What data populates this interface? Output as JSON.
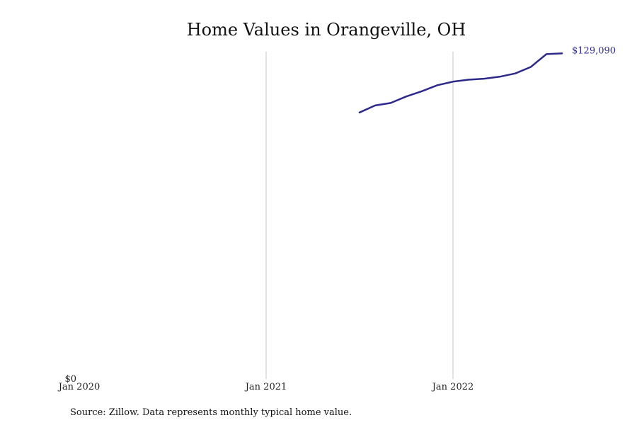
{
  "chart_data": {
    "type": "line",
    "title": "Home Values in Orangeville, OH",
    "xlabel": "",
    "ylabel": "",
    "x_tick_labels": [
      "Jan 2020",
      "Jan 2021",
      "Jan 2022"
    ],
    "y_tick_labels": [
      "$0"
    ],
    "ylim": [
      0,
      129090
    ],
    "xlim": [
      "2020-01",
      "2022-10"
    ],
    "grid": "vertical lines at Jan 2021 and Jan 2022",
    "series": [
      {
        "color": "#2e2a8c",
        "points": [
          {
            "x": "2021-07",
            "y": 105500
          },
          {
            "x": "2021-08",
            "y": 108300
          },
          {
            "x": "2021-09",
            "y": 109300
          },
          {
            "x": "2021-10",
            "y": 111900
          },
          {
            "x": "2021-11",
            "y": 114000
          },
          {
            "x": "2021-12",
            "y": 116400
          },
          {
            "x": "2022-01",
            "y": 117800
          },
          {
            "x": "2022-02",
            "y": 118600
          },
          {
            "x": "2022-03",
            "y": 119000
          },
          {
            "x": "2022-04",
            "y": 119800
          },
          {
            "x": "2022-05",
            "y": 121100
          },
          {
            "x": "2022-06",
            "y": 123700
          },
          {
            "x": "2022-07",
            "y": 128800
          },
          {
            "x": "2022-08",
            "y": 129090
          }
        ]
      }
    ],
    "end_label": "$129,090",
    "source": "Source: Zillow. Data represents monthly typical home value."
  }
}
